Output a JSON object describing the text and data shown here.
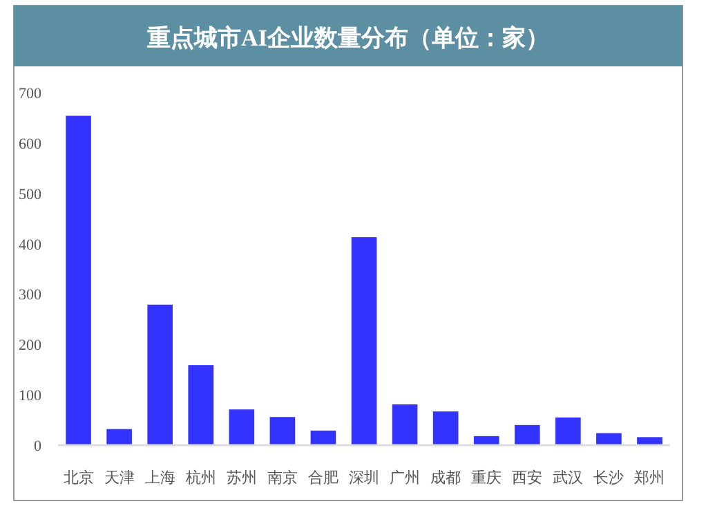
{
  "chart_data": {
    "type": "bar",
    "title": "重点城市AI企业数量分布（单位：家）",
    "categories": [
      "北京",
      "天津",
      "上海",
      "杭州",
      "苏州",
      "南京",
      "合肥",
      "深圳",
      "广州",
      "成都",
      "重庆",
      "西安",
      "武汉",
      "长沙",
      "郑州"
    ],
    "values": [
      654,
      32,
      279,
      159,
      71,
      56,
      29,
      413,
      81,
      67,
      18,
      40,
      55,
      24,
      16
    ],
    "color": "#3333ff",
    "ylim": [
      0,
      700
    ],
    "yticks": [
      0,
      100,
      200,
      300,
      400,
      500,
      600,
      700
    ],
    "grid": false
  }
}
